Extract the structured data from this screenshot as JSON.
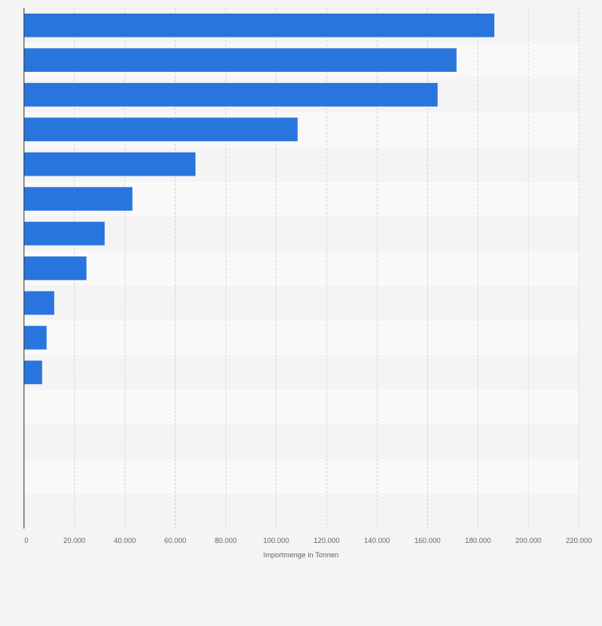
{
  "chart_data": {
    "type": "bar",
    "orientation": "horizontal",
    "categories": [
      "",
      "",
      "",
      "",
      "",
      "",
      "",
      "",
      "",
      "",
      "",
      "",
      "",
      "",
      ""
    ],
    "values": [
      186500,
      171500,
      164000,
      108500,
      68000,
      43000,
      32000,
      24800,
      12000,
      9000,
      7200,
      0,
      0,
      0,
      0
    ],
    "xlabel": "Importmenge in Tonnen",
    "ylabel": "",
    "xlim": [
      0,
      220000
    ],
    "xticks": [
      0,
      20000,
      40000,
      60000,
      80000,
      100000,
      120000,
      140000,
      160000,
      180000,
      200000,
      220000
    ],
    "xtick_labels": [
      "0",
      "20.000",
      "40.000",
      "60.000",
      "80.000",
      "100.000",
      "120.000",
      "140.000",
      "160.000",
      "180.000",
      "200.000",
      "220.000"
    ],
    "grid": true,
    "bar_color": "#2876dd",
    "band_colors": [
      "#f4f4f4",
      "#f9f9f9"
    ],
    "grid_color": "#d6d6d6"
  }
}
